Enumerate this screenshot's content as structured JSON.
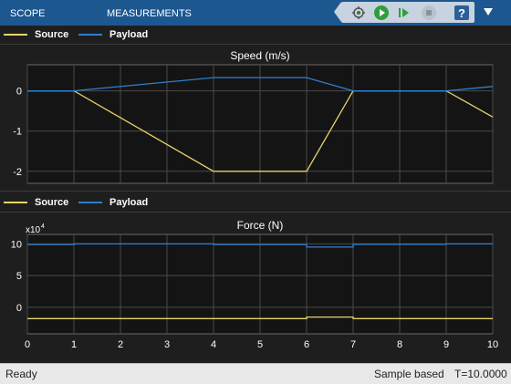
{
  "toolstrip": {
    "tabs": [
      "SCOPE",
      "MEASUREMENTS"
    ],
    "buttons": [
      "highlight-simulink-icon",
      "run-icon",
      "step-forward-icon",
      "stop-icon",
      "help-icon",
      "undock-icon"
    ]
  },
  "colors": {
    "toolstrip": "#1d5790",
    "source": "#e6d36a",
    "payload": "#2f7fcf",
    "axes_bg": "#141414",
    "grid": "#4a4a4a",
    "text": "#ffffff"
  },
  "legend1": {
    "items": [
      {
        "label": "Source"
      },
      {
        "label": "Payload"
      }
    ]
  },
  "legend2": {
    "items": [
      {
        "label": "Source"
      },
      {
        "label": "Payload"
      }
    ]
  },
  "chart_data": [
    {
      "type": "line",
      "title": "Speed (m/s)",
      "xlim": [
        0,
        10
      ],
      "ylim": [
        -2.3,
        0.65
      ],
      "xticks": [
        0,
        1,
        2,
        3,
        4,
        5,
        6,
        7,
        8,
        9,
        10
      ],
      "yticks": [
        0,
        -1,
        -2
      ],
      "ytick_labels": [
        "0",
        "-1",
        "-2"
      ],
      "xtick_labels_visible": false,
      "grid": true,
      "series": [
        {
          "name": "Source",
          "x": [
            0,
            1,
            4,
            6,
            7,
            9,
            10
          ],
          "y": [
            0,
            0,
            -2,
            -2,
            0,
            0,
            -0.65
          ]
        },
        {
          "name": "Payload",
          "x": [
            0,
            1,
            4,
            6,
            7,
            9,
            10
          ],
          "y": [
            0,
            0,
            0.33,
            0.33,
            0,
            0,
            0.11
          ]
        }
      ]
    },
    {
      "type": "line",
      "title": "Force (N)",
      "exponent_base": "x10",
      "exponent_power": "4",
      "xlim": [
        0,
        10
      ],
      "ylim": [
        -4.2,
        11.5
      ],
      "xticks": [
        0,
        1,
        2,
        3,
        4,
        5,
        6,
        7,
        8,
        9,
        10
      ],
      "xtick_labels": [
        "0",
        "1",
        "2",
        "3",
        "4",
        "5",
        "6",
        "7",
        "8",
        "9",
        "10"
      ],
      "yticks": [
        10,
        5,
        0
      ],
      "ytick_labels": [
        "10",
        "5",
        "0"
      ],
      "xtick_labels_visible": true,
      "grid": true,
      "series": [
        {
          "name": "Source",
          "x": [
            0,
            1,
            1,
            4,
            4,
            6,
            6,
            7,
            7,
            9,
            9,
            10
          ],
          "y": [
            -1.8,
            -1.8,
            -1.8,
            -1.8,
            -1.8,
            -1.8,
            -1.55,
            -1.55,
            -1.8,
            -1.8,
            -1.8,
            -1.8
          ]
        },
        {
          "name": "Payload",
          "x": [
            0,
            1,
            1,
            4,
            4,
            6,
            6,
            7,
            7,
            9,
            9,
            10
          ],
          "y": [
            9.9,
            9.9,
            10.0,
            10.0,
            9.9,
            9.9,
            9.5,
            9.5,
            9.95,
            9.95,
            10.0,
            10.0
          ]
        }
      ]
    }
  ],
  "status": {
    "left": "Ready",
    "mode": "Sample based",
    "time": "T=10.0000"
  }
}
